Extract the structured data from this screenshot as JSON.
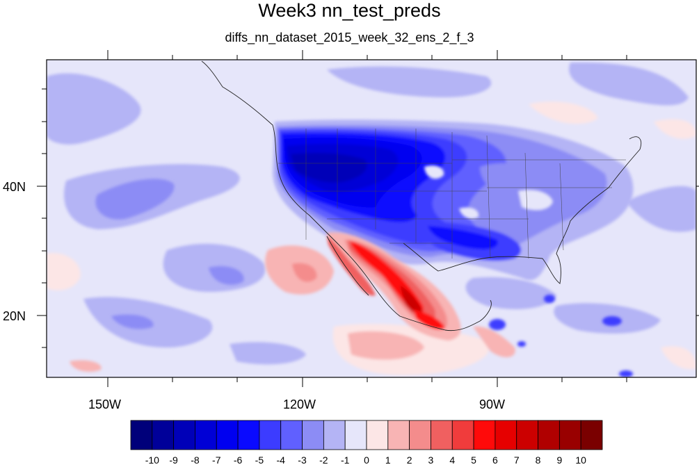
{
  "title": "Week3 nn_test_preds",
  "subtitle": "diffs_nn_dataset_2015_week_32_ens_2_f_3",
  "axes": {
    "x_ticks": [
      "150W",
      "120W",
      "90W"
    ],
    "y_ticks": [
      "40N",
      "20N"
    ]
  },
  "colorbar": {
    "colors": [
      "#00007a",
      "#000099",
      "#0000b8",
      "#0000d6",
      "#0000f0",
      "#0a0aff",
      "#3c3cff",
      "#6060ff",
      "#8c8cf5",
      "#b4b4f5",
      "#e6e6fa",
      "#fce6e6",
      "#f8b4b4",
      "#f48c8c",
      "#f06060",
      "#f03c3c",
      "#ff0a0a",
      "#e60000",
      "#cc0000",
      "#b00000",
      "#990000",
      "#7a0000"
    ],
    "labels": [
      "-10",
      "-9",
      "-8",
      "-7",
      "-6",
      "-5",
      "-4",
      "-3",
      "-2",
      "-1",
      "0",
      "1",
      "2",
      "3",
      "4",
      "5",
      "6",
      "7",
      "8",
      "9",
      "10"
    ]
  }
}
